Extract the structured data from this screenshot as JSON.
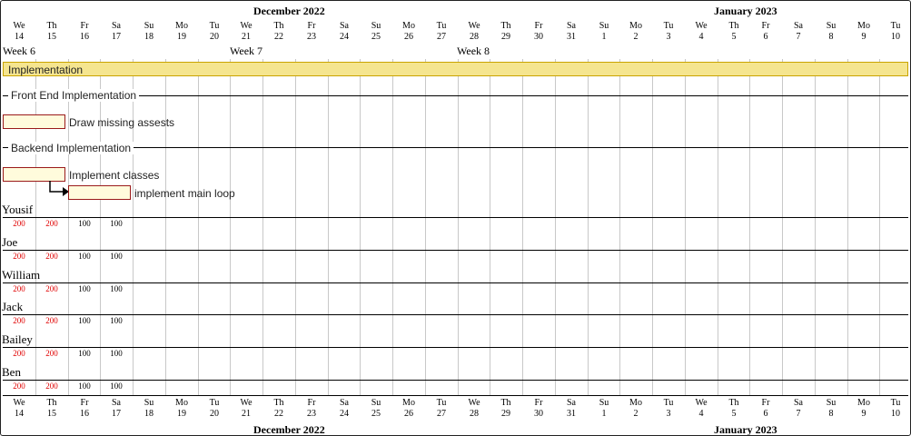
{
  "months": [
    "December 2022",
    "January 2023"
  ],
  "days": [
    {
      "n": "We",
      "d": "14"
    },
    {
      "n": "Th",
      "d": "15"
    },
    {
      "n": "Fr",
      "d": "16"
    },
    {
      "n": "Sa",
      "d": "17"
    },
    {
      "n": "Su",
      "d": "18"
    },
    {
      "n": "Mo",
      "d": "19"
    },
    {
      "n": "Tu",
      "d": "20"
    },
    {
      "n": "We",
      "d": "21"
    },
    {
      "n": "Th",
      "d": "22"
    },
    {
      "n": "Fr",
      "d": "23"
    },
    {
      "n": "Sa",
      "d": "24"
    },
    {
      "n": "Su",
      "d": "25"
    },
    {
      "n": "Mo",
      "d": "26"
    },
    {
      "n": "Tu",
      "d": "27"
    },
    {
      "n": "We",
      "d": "28"
    },
    {
      "n": "Th",
      "d": "29"
    },
    {
      "n": "Fr",
      "d": "30"
    },
    {
      "n": "Sa",
      "d": "31"
    },
    {
      "n": "Su",
      "d": "1"
    },
    {
      "n": "Mo",
      "d": "2"
    },
    {
      "n": "Tu",
      "d": "3"
    },
    {
      "n": "We",
      "d": "4"
    },
    {
      "n": "Th",
      "d": "5"
    },
    {
      "n": "Fr",
      "d": "6"
    },
    {
      "n": "Sa",
      "d": "7"
    },
    {
      "n": "Su",
      "d": "8"
    },
    {
      "n": "Mo",
      "d": "9"
    },
    {
      "n": "Tu",
      "d": "10"
    }
  ],
  "weeks": [
    "Week 6",
    "Week 7",
    "Week 8"
  ],
  "groups": {
    "implementation": "Implementation",
    "frontend": "Front End Implementation",
    "backend": "Backend Implementation"
  },
  "tasks": {
    "draw_assets": "Draw missing assests",
    "implement_classes": "Implement classes",
    "main_loop": "implement main loop"
  },
  "resources": [
    {
      "name": "Yousif",
      "loads": [
        "200",
        "200",
        "100",
        "100"
      ]
    },
    {
      "name": "Joe",
      "loads": [
        "200",
        "200",
        "100",
        "100"
      ]
    },
    {
      "name": "William",
      "loads": [
        "200",
        "200",
        "100",
        "100"
      ]
    },
    {
      "name": "Jack",
      "loads": [
        "200",
        "200",
        "100",
        "100"
      ]
    },
    {
      "name": "Bailey",
      "loads": [
        "200",
        "200",
        "100",
        "100"
      ]
    },
    {
      "name": "Ben",
      "loads": [
        "200",
        "200",
        "100",
        "100"
      ]
    }
  ],
  "colors": {
    "group_bar": "#f5e58f",
    "task_bar": "#fffbdc",
    "task_border": "#9a1a1a",
    "overload": "#e00000"
  }
}
